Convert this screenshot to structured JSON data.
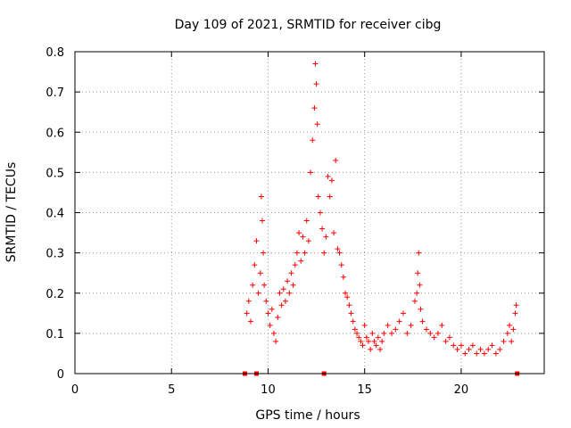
{
  "chart_data": {
    "type": "scatter",
    "title": "Day 109 of 2021, SRMTID for receiver cibg",
    "xlabel": "GPS time / hours",
    "ylabel": "SRMTID / TECUs",
    "xlim": [
      0,
      24.3
    ],
    "ylim": [
      0,
      0.8
    ],
    "xticks": [
      0,
      5,
      10,
      15,
      20
    ],
    "yticks": [
      0,
      0.1,
      0.2,
      0.3,
      0.4,
      0.5,
      0.6,
      0.7,
      0.8
    ],
    "ytick_labels": [
      "0",
      "0.1",
      "0.2",
      "0.3",
      "0.4",
      "0.5",
      "0.6",
      "0.7",
      "0.8"
    ],
    "grid": true,
    "marker": "+",
    "color": "#ff0000",
    "series": [
      {
        "name": "SRMTID",
        "x": [
          8.9,
          9.0,
          9.1,
          9.2,
          9.3,
          9.4,
          9.5,
          9.6,
          9.65,
          9.7,
          9.75,
          9.8,
          9.9,
          10.0,
          10.1,
          10.2,
          10.3,
          10.4,
          10.5,
          10.6,
          10.7,
          10.8,
          10.9,
          11.0,
          11.1,
          11.2,
          11.3,
          11.4,
          11.5,
          11.6,
          11.7,
          11.8,
          11.9,
          12.0,
          12.1,
          12.2,
          12.3,
          12.4,
          12.45,
          12.5,
          12.55,
          12.6,
          12.7,
          12.8,
          12.9,
          13.0,
          13.1,
          13.2,
          13.3,
          13.4,
          13.5,
          13.6,
          13.7,
          13.8,
          13.9,
          14.0,
          14.1,
          14.2,
          14.3,
          14.4,
          14.5,
          14.6,
          14.7,
          14.8,
          14.9,
          15.0,
          15.1,
          15.2,
          15.3,
          15.4,
          15.5,
          15.6,
          15.7,
          15.8,
          15.9,
          16.0,
          16.2,
          16.4,
          16.6,
          16.8,
          17.0,
          17.2,
          17.4,
          17.6,
          17.7,
          17.75,
          17.8,
          17.85,
          17.9,
          18.0,
          18.2,
          18.4,
          18.6,
          18.8,
          19.0,
          19.2,
          19.4,
          19.6,
          19.8,
          20.0,
          20.2,
          20.4,
          20.6,
          20.8,
          21.0,
          21.2,
          21.4,
          21.6,
          21.8,
          22.0,
          22.2,
          22.4,
          22.5,
          22.6,
          22.7,
          22.8,
          22.85
        ],
        "y": [
          0.15,
          0.18,
          0.13,
          0.22,
          0.27,
          0.33,
          0.2,
          0.25,
          0.44,
          0.38,
          0.3,
          0.22,
          0.18,
          0.15,
          0.12,
          0.16,
          0.1,
          0.08,
          0.14,
          0.2,
          0.17,
          0.21,
          0.18,
          0.23,
          0.2,
          0.25,
          0.22,
          0.27,
          0.3,
          0.35,
          0.28,
          0.34,
          0.3,
          0.38,
          0.33,
          0.5,
          0.58,
          0.66,
          0.77,
          0.72,
          0.62,
          0.44,
          0.4,
          0.36,
          0.3,
          0.34,
          0.49,
          0.44,
          0.48,
          0.35,
          0.53,
          0.31,
          0.3,
          0.27,
          0.24,
          0.2,
          0.19,
          0.17,
          0.15,
          0.13,
          0.11,
          0.1,
          0.09,
          0.08,
          0.07,
          0.12,
          0.09,
          0.08,
          0.06,
          0.1,
          0.08,
          0.07,
          0.09,
          0.06,
          0.08,
          0.1,
          0.12,
          0.1,
          0.11,
          0.13,
          0.15,
          0.1,
          0.12,
          0.18,
          0.2,
          0.25,
          0.3,
          0.22,
          0.16,
          0.13,
          0.11,
          0.1,
          0.09,
          0.1,
          0.12,
          0.08,
          0.09,
          0.07,
          0.06,
          0.07,
          0.05,
          0.06,
          0.07,
          0.05,
          0.06,
          0.05,
          0.06,
          0.07,
          0.05,
          0.06,
          0.08,
          0.1,
          0.12,
          0.08,
          0.11,
          0.15,
          0.17
        ]
      }
    ],
    "baseline_markers_x": [
      8.8,
      9.4,
      12.9,
      22.9
    ]
  }
}
